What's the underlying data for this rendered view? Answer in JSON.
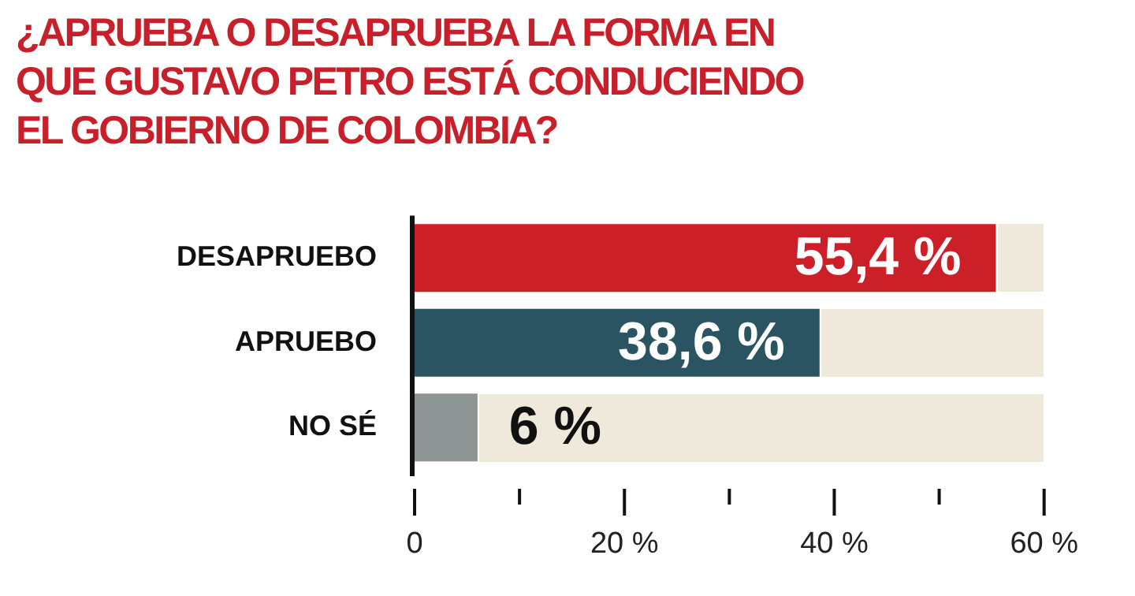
{
  "chart_data": {
    "type": "bar",
    "orientation": "horizontal",
    "title": "¿APRUEBA O DESAPRUEBA LA FORMA EN QUE GUSTAVO PETRO ESTÁ CONDUCIENDO EL GOBIERNO DE COLOMBIA?",
    "categories": [
      "DESAPRUEBO",
      "APRUEBO",
      "NO SÉ"
    ],
    "values": [
      55.4,
      38.6,
      6
    ],
    "colors": [
      "#cc2029",
      "#2a5461",
      "#8c9494"
    ],
    "value_labels": [
      "55,4 %",
      "38,6 %",
      "6 %"
    ],
    "xlim": [
      0,
      60
    ],
    "xticks": [
      0,
      {
        "value": 10,
        "label": null
      },
      {
        "value": 20,
        "label": "20 %"
      },
      {
        "value": 30,
        "label": null
      },
      {
        "value": 40,
        "label": "40 %"
      },
      {
        "value": 50,
        "label": null
      },
      {
        "value": 60,
        "label": "60 %"
      }
    ],
    "grid": false,
    "legend": false
  }
}
